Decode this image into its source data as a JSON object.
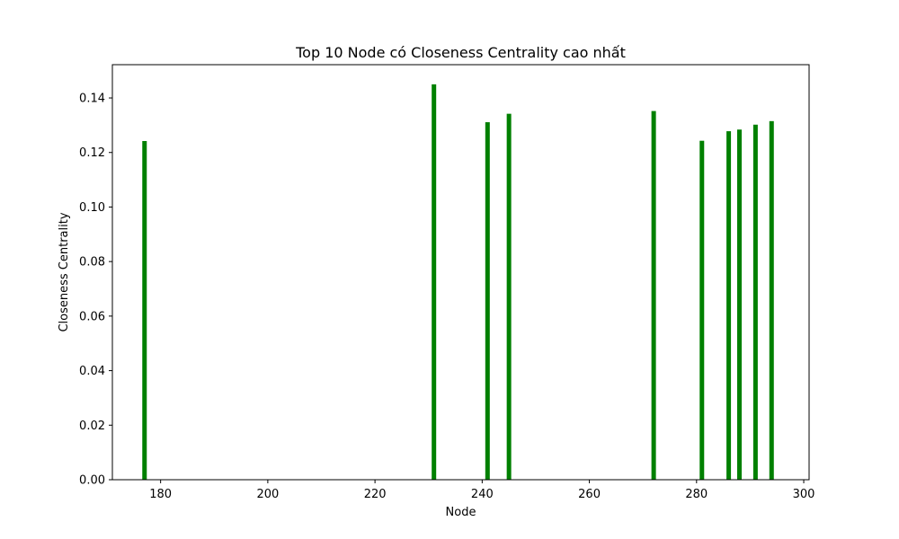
{
  "chart_data": {
    "type": "bar",
    "title": "Top 10 Node có Closeness Centrality cao nhất",
    "xlabel": "Node",
    "ylabel": "Closeness Centrality",
    "x": [
      177,
      231,
      241,
      245,
      272,
      281,
      286,
      288,
      291,
      294
    ],
    "values": [
      0.1242,
      0.145,
      0.1311,
      0.1342,
      0.1352,
      0.1243,
      0.1278,
      0.1284,
      0.1302,
      0.1315
    ],
    "xlim": [
      171,
      301
    ],
    "ylim": [
      0,
      0.1522
    ],
    "xticks": [
      180,
      200,
      220,
      240,
      260,
      280,
      300
    ],
    "yticks": [
      0.0,
      0.02,
      0.04,
      0.06,
      0.08,
      0.1,
      0.12,
      0.14
    ],
    "ytick_labels": [
      "0.00",
      "0.02",
      "0.04",
      "0.06",
      "0.08",
      "0.10",
      "0.12",
      "0.14"
    ],
    "bar_color": "#008000",
    "grid": false,
    "legend": "none"
  }
}
